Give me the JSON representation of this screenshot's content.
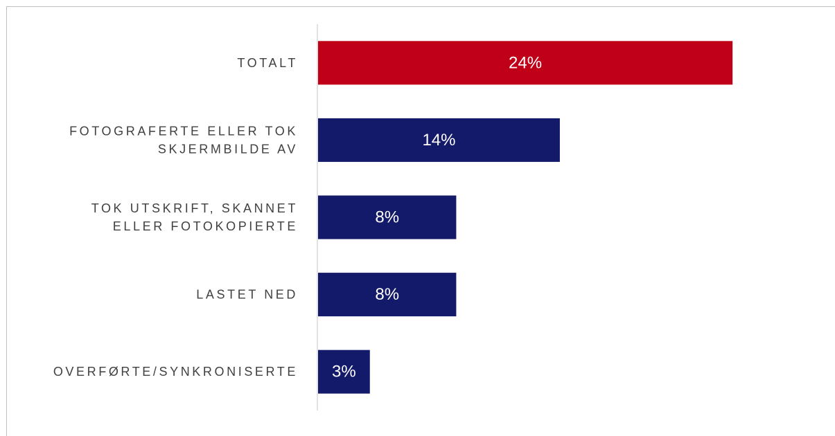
{
  "chart_data": {
    "type": "bar",
    "orientation": "horizontal",
    "categories": [
      [
        "TOTALT"
      ],
      [
        "FOTOGRAFERTE ELLER TOK",
        "SKJERMBILDE AV"
      ],
      [
        "TOK UTSKRIFT, SKANNET",
        "ELLER FOTOKOPIERTE"
      ],
      [
        "LASTET NED"
      ],
      [
        "OVERFØRTE/SYNKRONISERTE"
      ]
    ],
    "values": [
      24,
      14,
      8,
      8,
      3
    ],
    "data_labels": [
      "24%",
      "14%",
      "8%",
      "8%",
      "3%"
    ],
    "bar_colors": [
      "#c00018",
      "#141a6a",
      "#141a6a",
      "#141a6a",
      "#141a6a"
    ],
    "xlim": [
      0,
      26
    ],
    "grid": false,
    "legend": "none"
  }
}
